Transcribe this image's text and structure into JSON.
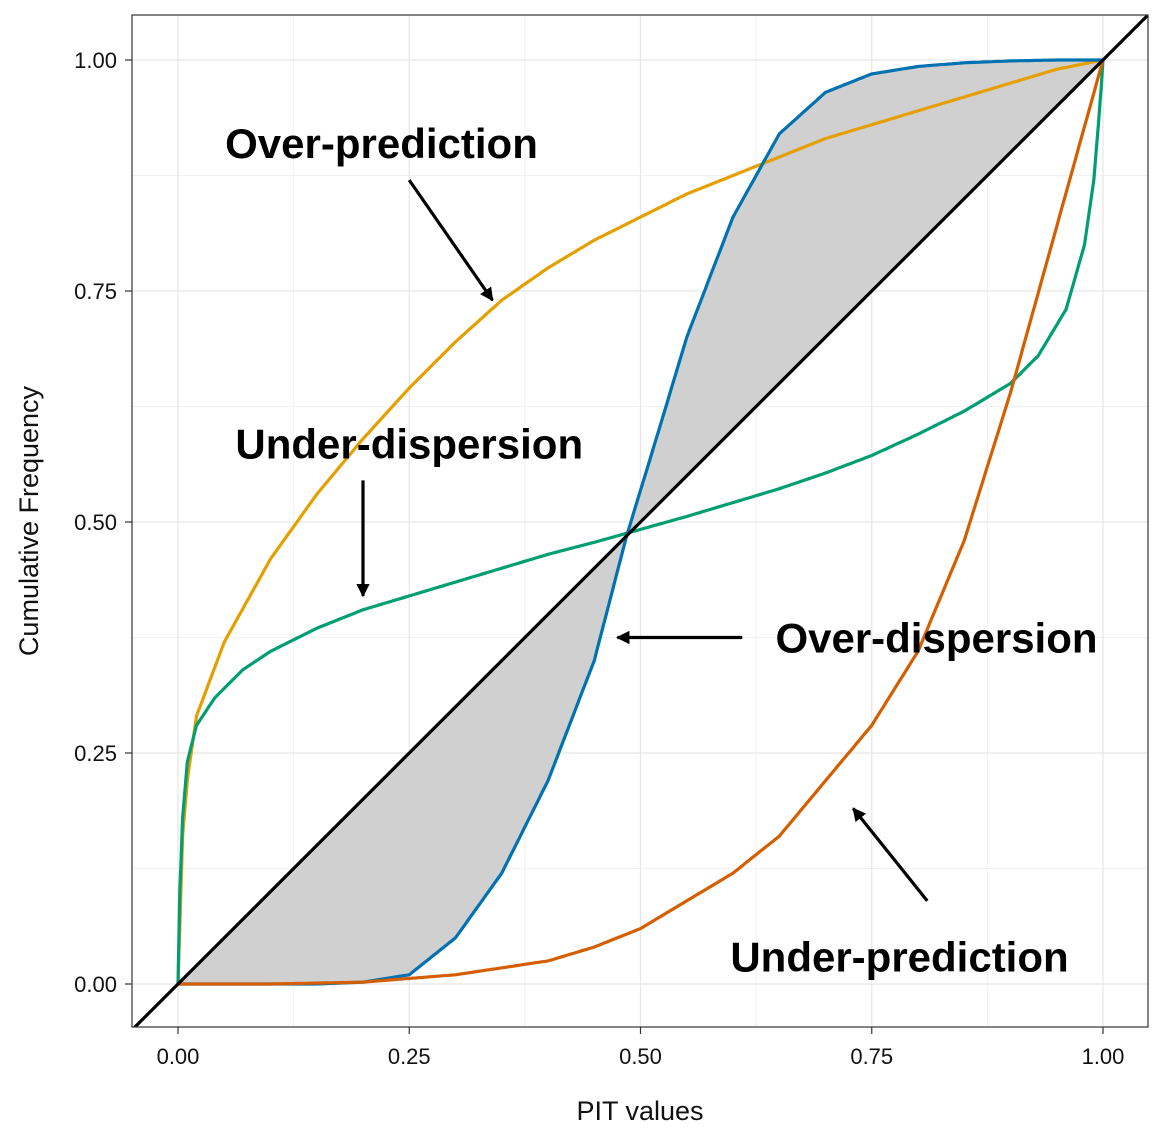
{
  "chart_data": {
    "type": "line",
    "title": "",
    "xlabel": "PIT values",
    "ylabel": "Cumulative Frequency",
    "xlim": [
      -0.05,
      1.05
    ],
    "ylim": [
      -0.05,
      1.08
    ],
    "grid": true,
    "x_ticks": [
      "0.00",
      "0.25",
      "0.50",
      "0.75",
      "1.00"
    ],
    "y_ticks": [
      "0.00",
      "0.25",
      "0.50",
      "0.75",
      "1.00"
    ],
    "series": [
      {
        "color": "#E69F00",
        "x": [
          0,
          0.005,
          0.01,
          0.02,
          0.05,
          0.1,
          0.15,
          0.2,
          0.25,
          0.3,
          0.35,
          0.4,
          0.45,
          0.5,
          0.55,
          0.6,
          0.65,
          0.7,
          0.75,
          0.8,
          0.85,
          0.9,
          0.95,
          1.0
        ],
        "y": [
          0,
          0.16,
          0.22,
          0.29,
          0.37,
          0.46,
          0.53,
          0.59,
          0.645,
          0.695,
          0.74,
          0.775,
          0.805,
          0.83,
          0.855,
          0.875,
          0.895,
          0.915,
          0.93,
          0.945,
          0.96,
          0.975,
          0.99,
          1.0
        ]
      },
      {
        "color": "#009E73",
        "x": [
          0,
          0.002,
          0.005,
          0.01,
          0.02,
          0.04,
          0.07,
          0.1,
          0.15,
          0.2,
          0.25,
          0.3,
          0.35,
          0.4,
          0.45,
          0.5,
          0.55,
          0.6,
          0.65,
          0.7,
          0.75,
          0.8,
          0.85,
          0.9,
          0.93,
          0.96,
          0.98,
          0.99,
          0.995,
          0.998,
          1.0
        ],
        "y": [
          0,
          0.1,
          0.18,
          0.24,
          0.28,
          0.31,
          0.34,
          0.36,
          0.385,
          0.405,
          0.42,
          0.435,
          0.45,
          0.465,
          0.478,
          0.492,
          0.506,
          0.521,
          0.536,
          0.553,
          0.572,
          0.595,
          0.62,
          0.65,
          0.68,
          0.73,
          0.8,
          0.87,
          0.93,
          0.97,
          1.0
        ]
      },
      {
        "color": "#0072B2",
        "x": [
          0,
          0.05,
          0.1,
          0.15,
          0.2,
          0.25,
          0.3,
          0.35,
          0.4,
          0.45,
          0.485,
          0.52,
          0.55,
          0.6,
          0.65,
          0.7,
          0.75,
          0.8,
          0.85,
          0.9,
          0.95,
          1.0
        ],
        "y": [
          0,
          0,
          0,
          0,
          0.002,
          0.01,
          0.05,
          0.12,
          0.22,
          0.35,
          0.485,
          0.6,
          0.7,
          0.83,
          0.92,
          0.965,
          0.985,
          0.993,
          0.997,
          0.999,
          1.0,
          1.0
        ]
      },
      {
        "color": "#D55E00",
        "x": [
          0,
          0.1,
          0.2,
          0.3,
          0.4,
          0.45,
          0.5,
          0.55,
          0.6,
          0.65,
          0.7,
          0.75,
          0.8,
          0.85,
          0.9,
          0.95,
          1.0
        ],
        "y": [
          0,
          0,
          0.002,
          0.01,
          0.025,
          0.04,
          0.06,
          0.09,
          0.12,
          0.16,
          0.22,
          0.28,
          0.36,
          0.48,
          0.64,
          0.82,
          1.0
        ]
      }
    ],
    "reference_line": {
      "color": "#000000",
      "x": [
        -0.05,
        1.05
      ],
      "y": [
        -0.05,
        1.05
      ]
    },
    "annotations": [
      {
        "text": "Over-prediction",
        "x": 0.22,
        "y": 0.91,
        "arrow_from": [
          0.25,
          0.87
        ],
        "arrow_to": [
          0.34,
          0.74
        ]
      },
      {
        "text": "Under-dispersion",
        "x": 0.25,
        "y": 0.585,
        "arrow_from": [
          0.2,
          0.545
        ],
        "arrow_to": [
          0.2,
          0.42
        ]
      },
      {
        "text": "Over-dispersion",
        "x": 0.82,
        "y": 0.375,
        "arrow_from": [
          0.61,
          0.375
        ],
        "arrow_to": [
          0.475,
          0.375
        ]
      },
      {
        "text": "Under-prediction",
        "x": 0.78,
        "y": 0.03,
        "arrow_from": [
          0.81,
          0.09
        ],
        "arrow_to": [
          0.73,
          0.19
        ]
      }
    ]
  }
}
